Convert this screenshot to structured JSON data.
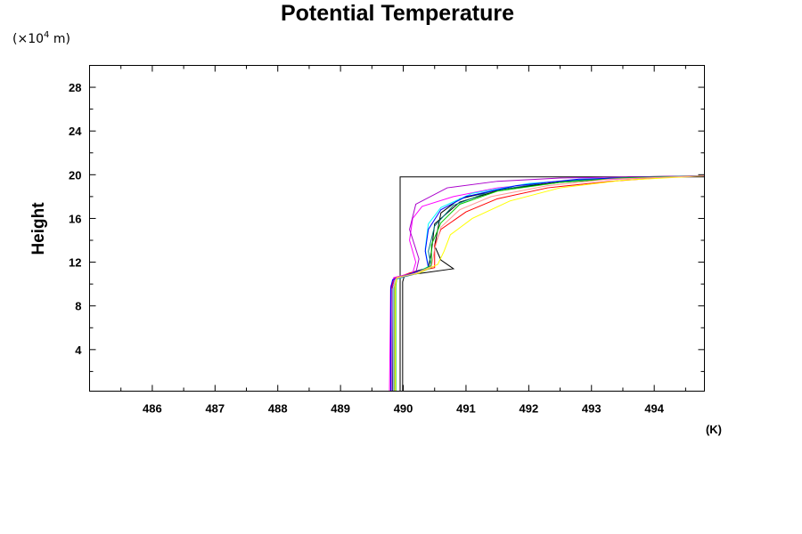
{
  "chart_data": {
    "type": "line",
    "title": "Potential Temperature",
    "xlabel": "",
    "ylabel": "Height",
    "x_unit": "(K)",
    "y_unit_prefix": "(×10",
    "y_unit_exp": "4",
    "y_unit_suffix": " m)",
    "xlim": [
      485.0,
      494.8
    ],
    "ylim": [
      0.2,
      30.0
    ],
    "x_ticks": [
      486,
      487,
      488,
      489,
      490,
      491,
      492,
      493,
      494
    ],
    "x_tick_labels": [
      "486",
      "487",
      "488",
      "489",
      "490",
      "491",
      "492",
      "493",
      "494"
    ],
    "y_ticks": [
      4,
      8,
      12,
      16,
      20,
      24,
      28
    ],
    "y_tick_labels": [
      "4",
      "8",
      "12",
      "16",
      "20",
      "24",
      "28"
    ],
    "grid": false,
    "series": [
      {
        "color": "#000000",
        "points": [
          [
            489.95,
            0.2
          ],
          [
            489.95,
            10.0
          ],
          [
            489.95,
            19.8
          ],
          [
            494.8,
            19.8
          ]
        ]
      },
      {
        "color": "#000000",
        "points": [
          [
            489.99,
            0.2
          ],
          [
            489.99,
            10.2
          ],
          [
            490.02,
            10.8
          ],
          [
            490.3,
            11.0
          ],
          [
            490.8,
            11.4
          ],
          [
            490.6,
            12.2
          ],
          [
            490.5,
            13.5
          ],
          [
            490.55,
            15.0
          ],
          [
            490.6,
            16.5
          ],
          [
            490.9,
            17.8
          ],
          [
            491.5,
            18.6
          ],
          [
            492.5,
            19.3
          ],
          [
            493.5,
            19.7
          ],
          [
            494.8,
            19.9
          ]
        ]
      },
      {
        "color": "#000000",
        "points": [
          [
            489.83,
            0.2
          ],
          [
            489.82,
            9.5
          ],
          [
            489.85,
            10.4
          ],
          [
            490.1,
            11.0
          ],
          [
            490.4,
            11.5
          ],
          [
            490.45,
            13.0
          ],
          [
            490.5,
            15.5
          ],
          [
            490.9,
            17.5
          ],
          [
            491.6,
            18.7
          ],
          [
            492.6,
            19.4
          ],
          [
            493.6,
            19.8
          ],
          [
            494.8,
            19.9
          ]
        ]
      },
      {
        "color": "#ff0000",
        "points": [
          [
            489.8,
            0.2
          ],
          [
            489.8,
            9.5
          ],
          [
            489.85,
            10.5
          ],
          [
            490.1,
            11.0
          ],
          [
            490.5,
            11.5
          ],
          [
            490.5,
            13.5
          ],
          [
            490.6,
            15.0
          ],
          [
            491.0,
            16.6
          ],
          [
            491.5,
            17.8
          ],
          [
            492.3,
            18.8
          ],
          [
            493.3,
            19.4
          ],
          [
            494.3,
            19.8
          ],
          [
            494.8,
            19.9
          ]
        ]
      },
      {
        "color": "#ff00ff",
        "points": [
          [
            489.78,
            0.2
          ],
          [
            489.8,
            9.8
          ],
          [
            489.85,
            10.6
          ],
          [
            490.15,
            11.0
          ],
          [
            490.2,
            12.0
          ],
          [
            490.1,
            14.0
          ],
          [
            490.15,
            16.0
          ],
          [
            490.3,
            17.1
          ],
          [
            490.8,
            18.0
          ],
          [
            491.5,
            18.8
          ],
          [
            492.5,
            19.4
          ],
          [
            494.8,
            19.9
          ]
        ]
      },
      {
        "color": "#aa00cc",
        "points": [
          [
            489.82,
            0.2
          ],
          [
            489.82,
            9.6
          ],
          [
            489.86,
            10.5
          ],
          [
            490.2,
            11.0
          ],
          [
            490.25,
            12.3
          ],
          [
            490.1,
            15.0
          ],
          [
            490.2,
            17.3
          ],
          [
            490.7,
            18.8
          ],
          [
            491.5,
            19.4
          ],
          [
            492.5,
            19.7
          ],
          [
            494.8,
            19.9
          ]
        ]
      },
      {
        "color": "#00ffff",
        "points": [
          [
            489.84,
            0.2
          ],
          [
            489.84,
            9.5
          ],
          [
            489.87,
            10.4
          ],
          [
            490.2,
            11.0
          ],
          [
            490.4,
            11.6
          ],
          [
            490.35,
            13.2
          ],
          [
            490.4,
            15.5
          ],
          [
            490.6,
            17.0
          ],
          [
            491.1,
            18.3
          ],
          [
            492.0,
            19.2
          ],
          [
            493.0,
            19.6
          ],
          [
            494.8,
            19.9
          ]
        ]
      },
      {
        "color": "#008080",
        "points": [
          [
            489.86,
            0.2
          ],
          [
            489.86,
            9.7
          ],
          [
            489.9,
            10.5
          ],
          [
            490.25,
            11.0
          ],
          [
            490.45,
            11.5
          ],
          [
            490.4,
            13.0
          ],
          [
            490.5,
            15.3
          ],
          [
            490.8,
            17.2
          ],
          [
            491.4,
            18.5
          ],
          [
            492.3,
            19.3
          ],
          [
            493.3,
            19.7
          ],
          [
            494.8,
            19.9
          ]
        ]
      },
      {
        "color": "#0000ff",
        "points": [
          [
            489.8,
            0.2
          ],
          [
            489.8,
            9.6
          ],
          [
            489.83,
            10.4
          ],
          [
            490.15,
            11.0
          ],
          [
            490.4,
            11.5
          ],
          [
            490.35,
            13.0
          ],
          [
            490.4,
            15.0
          ],
          [
            490.6,
            16.8
          ],
          [
            491.0,
            18.0
          ],
          [
            491.8,
            19.0
          ],
          [
            492.8,
            19.6
          ],
          [
            494.8,
            19.9
          ]
        ]
      },
      {
        "color": "#00cc00",
        "points": [
          [
            489.88,
            0.2
          ],
          [
            489.88,
            9.8
          ],
          [
            489.9,
            10.6
          ],
          [
            490.2,
            11.0
          ],
          [
            490.45,
            11.7
          ],
          [
            490.45,
            13.6
          ],
          [
            490.6,
            15.6
          ],
          [
            490.9,
            17.3
          ],
          [
            491.5,
            18.5
          ],
          [
            492.5,
            19.3
          ],
          [
            493.5,
            19.7
          ],
          [
            494.8,
            19.9
          ]
        ]
      },
      {
        "color": "#ffff00",
        "points": [
          [
            489.87,
            0.2
          ],
          [
            489.87,
            9.8
          ],
          [
            489.9,
            10.6
          ],
          [
            490.25,
            11.0
          ],
          [
            490.55,
            11.8
          ],
          [
            490.65,
            13.0
          ],
          [
            490.75,
            14.5
          ],
          [
            491.1,
            16.0
          ],
          [
            491.7,
            17.6
          ],
          [
            492.5,
            18.8
          ],
          [
            493.5,
            19.5
          ],
          [
            494.8,
            19.9
          ]
        ]
      },
      {
        "color": "#ff9999",
        "points": [
          [
            489.85,
            0.2
          ],
          [
            489.85,
            9.7
          ],
          [
            489.88,
            10.5
          ],
          [
            490.2,
            11.0
          ],
          [
            490.45,
            11.6
          ],
          [
            490.5,
            13.2
          ],
          [
            490.6,
            15.2
          ],
          [
            490.9,
            16.8
          ],
          [
            491.4,
            18.0
          ],
          [
            492.3,
            19.0
          ],
          [
            493.3,
            19.6
          ],
          [
            494.8,
            19.9
          ]
        ]
      }
    ]
  }
}
